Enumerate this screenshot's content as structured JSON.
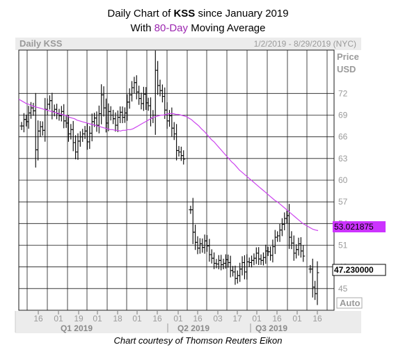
{
  "title": {
    "prefix": "Daily Chart of ",
    "ticker": "KSS",
    "suffix": " since January 2019",
    "line2_prefix": "With ",
    "ma_label": "80-Day",
    "line2_suffix": " Moving Average"
  },
  "credit": "Chart courtesy of Thomson Reuters Eikon",
  "chart_header": {
    "left": "Daily KSS",
    "right": "1/2/2019 - 8/29/2019 (NYC)"
  },
  "axis_labels": {
    "price": "Price",
    "currency": "USD",
    "auto": "Auto"
  },
  "colors": {
    "ma": "#cc44ee",
    "ma_tag": "#cc33ff",
    "grid": "#1a1a1a",
    "price_bars": "#000000"
  },
  "chart_data": {
    "type": "ohlc",
    "ylim": [
      42,
      78
    ],
    "yticks": [
      45,
      48,
      51,
      54,
      57,
      60,
      63,
      66,
      69,
      72
    ],
    "xtick_labels": [
      "16",
      "01",
      "19",
      "01",
      "18",
      "01",
      "16",
      "01",
      "16",
      "03",
      "17",
      "01",
      "16",
      "01",
      "16"
    ],
    "quarters": [
      "Q1 2019",
      "Q2 2019",
      "Q3 2019"
    ],
    "last_price": "47.230000",
    "ma_value": "53.021875",
    "closes": [
      67.5,
      68.4,
      68.1,
      69.3,
      70.0,
      69.6,
      64.2,
      66.8,
      67.4,
      66.9,
      69.8,
      70.5,
      71.0,
      69.5,
      69.8,
      69.2,
      68.9,
      69.5,
      68.2,
      67.9,
      66.4,
      67.0,
      65.2,
      63.9,
      65.4,
      66.0,
      66.4,
      66.8,
      65.3,
      66.5,
      68.1,
      68.6,
      67.6,
      69.2,
      71.8,
      70.0,
      67.9,
      69.5,
      69.0,
      68.5,
      67.6,
      68.7,
      69.4,
      68.7,
      69.3,
      70.8,
      71.8,
      72.8,
      73.5,
      72.2,
      71.3,
      70.6,
      71.9,
      70.7,
      70.3,
      68.6,
      69.0,
      75.2,
      73.1,
      72.4,
      71.6,
      69.7,
      68.2,
      68.9,
      67.2,
      66.4,
      64.1,
      63.9,
      63.4,
      62.9,
      null,
      null,
      55.9,
      52.8,
      51.4,
      50.6,
      51.2,
      50.7,
      51.6,
      50.9,
      49.7,
      49.2,
      48.5,
      48.4,
      48.9,
      48.3,
      48.5,
      49.0,
      48.6,
      47.5,
      47.3,
      46.4,
      46.8,
      47.7,
      48.6,
      47.3,
      48.7,
      48.6,
      48.9,
      49.2,
      49.9,
      49.1,
      48.9,
      49.3,
      50.2,
      50.1,
      49.6,
      50.8,
      52.1,
      52.3,
      53.1,
      53.9,
      54.7,
      55.1,
      52.1,
      51.3,
      49.9,
      50.4,
      51.2,
      50.2,
      49.5,
      null,
      null,
      47.7,
      45.2,
      44.3,
      47.2
    ],
    "ma80": [
      71.2,
      71.0,
      70.8,
      70.6,
      70.5,
      70.3,
      70.2,
      70.1,
      70.0,
      69.9,
      69.8,
      69.7,
      69.6,
      69.5,
      69.4,
      69.3,
      69.2,
      69.1,
      69.0,
      68.9,
      68.7,
      68.6,
      68.5,
      68.3,
      68.2,
      68.1,
      68.0,
      67.9,
      67.8,
      67.7,
      67.6,
      67.5,
      67.4,
      67.3,
      67.2,
      67.1,
      67.0,
      67.0,
      66.9,
      66.9,
      66.8,
      66.9,
      66.9,
      67.0,
      67.0,
      67.1,
      67.3,
      67.5,
      67.7,
      67.9,
      68.1,
      68.3,
      68.5,
      68.7,
      68.8,
      68.9,
      69.0,
      69.0,
      69.1,
      69.2,
      69.2,
      69.2,
      69.1,
      69.1,
      69.0,
      68.9,
      68.8,
      68.6,
      68.4,
      68.1,
      67.8,
      67.5,
      67.1,
      66.8,
      66.4,
      66.0,
      65.6,
      65.3,
      64.9,
      64.5,
      64.1,
      63.7,
      63.3,
      62.9,
      62.5,
      62.2,
      61.8,
      61.4,
      61.1,
      60.8,
      60.5,
      60.2,
      59.9,
      59.6,
      59.3,
      59.0,
      58.7,
      58.4,
      58.1,
      57.8,
      57.5,
      57.2,
      57.0,
      56.7,
      56.4,
      56.1,
      55.8,
      55.5,
      55.2,
      54.9,
      54.6,
      54.3,
      54.0,
      53.8,
      53.6,
      53.4,
      53.2,
      53.1,
      53.02
    ]
  }
}
